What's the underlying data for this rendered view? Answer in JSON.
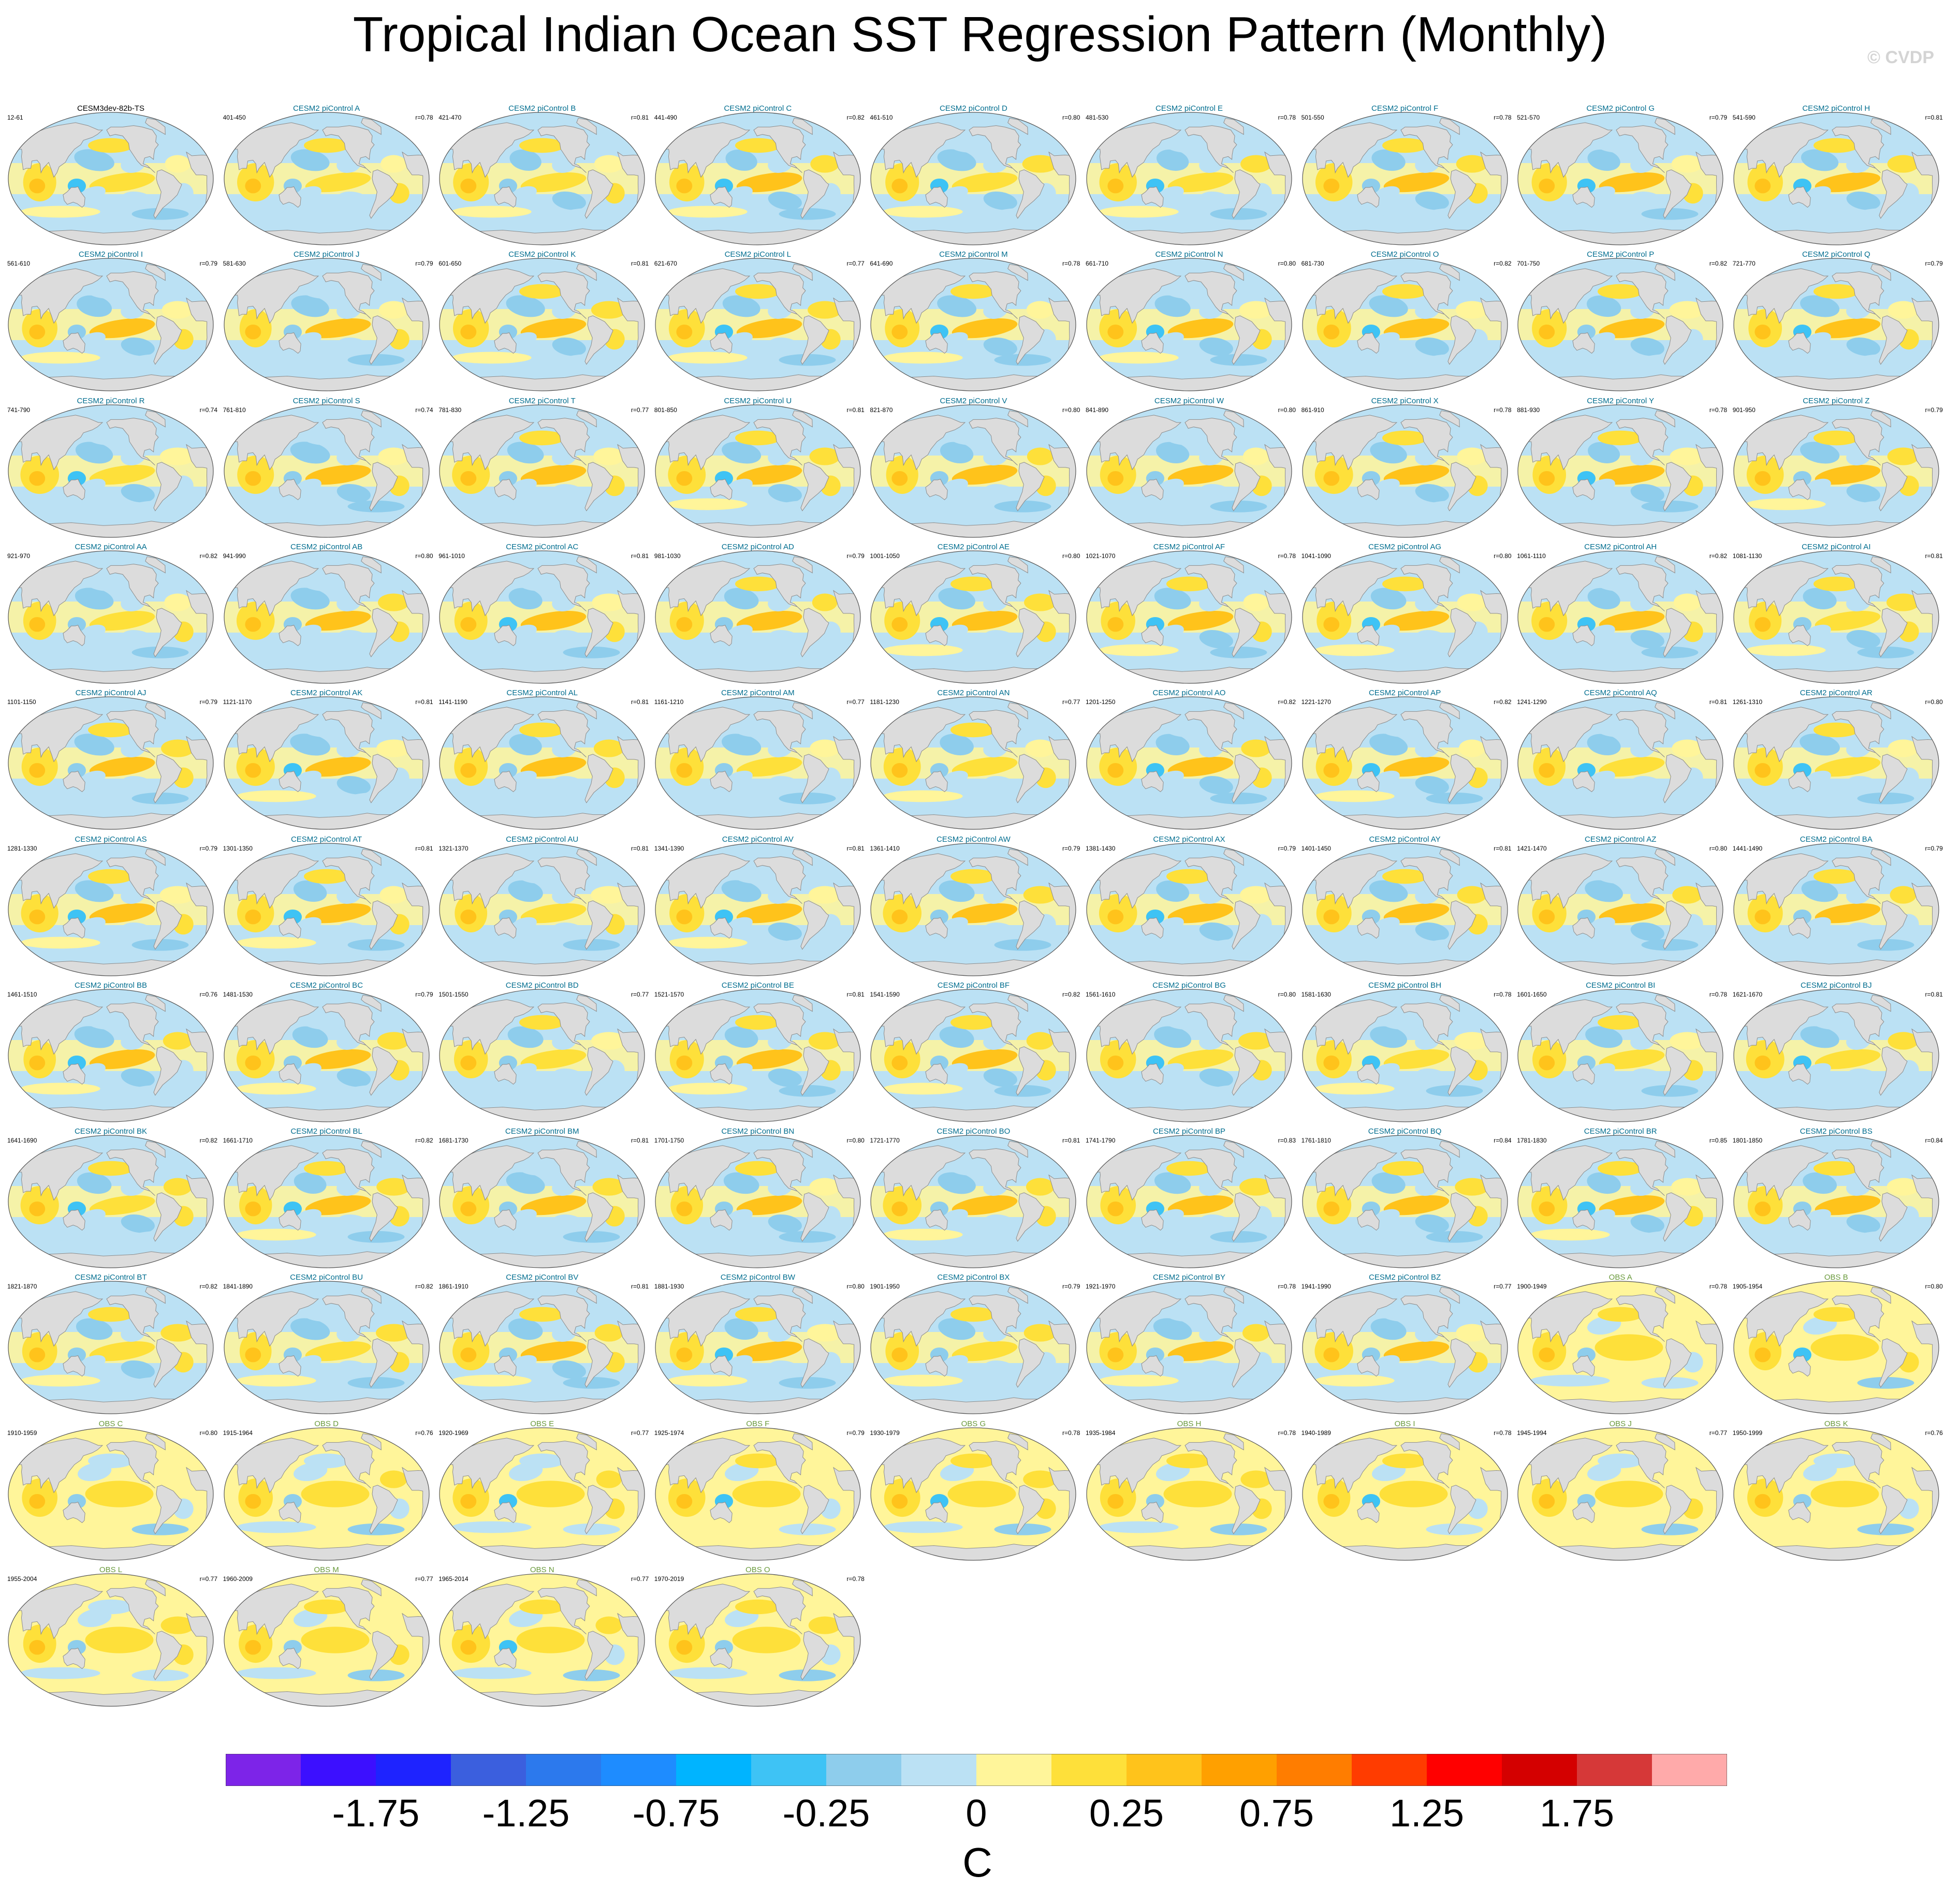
{
  "title": "Tropical Indian Ocean SST Regression Pattern (Monthly)",
  "watermark": "© CVDP",
  "panels": [
    {
      "title": "CESM3dev-82b-TS",
      "kind": "ref",
      "years": "12-61",
      "corr": ""
    },
    {
      "title": "CESM2 piControl A",
      "kind": "model",
      "years": "401-450",
      "corr": "r=0.78"
    },
    {
      "title": "CESM2 piControl B",
      "kind": "model",
      "years": "421-470",
      "corr": "r=0.81"
    },
    {
      "title": "CESM2 piControl C",
      "kind": "model",
      "years": "441-490",
      "corr": "r=0.82"
    },
    {
      "title": "CESM2 piControl D",
      "kind": "model",
      "years": "461-510",
      "corr": "r=0.80"
    },
    {
      "title": "CESM2 piControl E",
      "kind": "model",
      "years": "481-530",
      "corr": "r=0.78"
    },
    {
      "title": "CESM2 piControl F",
      "kind": "model",
      "years": "501-550",
      "corr": "r=0.78"
    },
    {
      "title": "CESM2 piControl G",
      "kind": "model",
      "years": "521-570",
      "corr": "r=0.79"
    },
    {
      "title": "CESM2 piControl H",
      "kind": "model",
      "years": "541-590",
      "corr": "r=0.81"
    },
    {
      "title": "CESM2 piControl I",
      "kind": "model",
      "years": "561-610",
      "corr": "r=0.79"
    },
    {
      "title": "CESM2 piControl J",
      "kind": "model",
      "years": "581-630",
      "corr": "r=0.79"
    },
    {
      "title": "CESM2 piControl K",
      "kind": "model",
      "years": "601-650",
      "corr": "r=0.81"
    },
    {
      "title": "CESM2 piControl L",
      "kind": "model",
      "years": "621-670",
      "corr": "r=0.77"
    },
    {
      "title": "CESM2 piControl M",
      "kind": "model",
      "years": "641-690",
      "corr": "r=0.78"
    },
    {
      "title": "CESM2 piControl N",
      "kind": "model",
      "years": "661-710",
      "corr": "r=0.80"
    },
    {
      "title": "CESM2 piControl O",
      "kind": "model",
      "years": "681-730",
      "corr": "r=0.82"
    },
    {
      "title": "CESM2 piControl P",
      "kind": "model",
      "years": "701-750",
      "corr": "r=0.82"
    },
    {
      "title": "CESM2 piControl Q",
      "kind": "model",
      "years": "721-770",
      "corr": "r=0.79"
    },
    {
      "title": "CESM2 piControl R",
      "kind": "model",
      "years": "741-790",
      "corr": "r=0.74"
    },
    {
      "title": "CESM2 piControl S",
      "kind": "model",
      "years": "761-810",
      "corr": "r=0.74"
    },
    {
      "title": "CESM2 piControl T",
      "kind": "model",
      "years": "781-830",
      "corr": "r=0.77"
    },
    {
      "title": "CESM2 piControl U",
      "kind": "model",
      "years": "801-850",
      "corr": "r=0.81"
    },
    {
      "title": "CESM2 piControl V",
      "kind": "model",
      "years": "821-870",
      "corr": "r=0.80"
    },
    {
      "title": "CESM2 piControl W",
      "kind": "model",
      "years": "841-890",
      "corr": "r=0.80"
    },
    {
      "title": "CESM2 piControl X",
      "kind": "model",
      "years": "861-910",
      "corr": "r=0.78"
    },
    {
      "title": "CESM2 piControl Y",
      "kind": "model",
      "years": "881-930",
      "corr": "r=0.78"
    },
    {
      "title": "CESM2 piControl Z",
      "kind": "model",
      "years": "901-950",
      "corr": "r=0.79"
    },
    {
      "title": "CESM2 piControl AA",
      "kind": "model",
      "years": "921-970",
      "corr": "r=0.82"
    },
    {
      "title": "CESM2 piControl AB",
      "kind": "model",
      "years": "941-990",
      "corr": "r=0.80"
    },
    {
      "title": "CESM2 piControl AC",
      "kind": "model",
      "years": "961-1010",
      "corr": "r=0.81"
    },
    {
      "title": "CESM2 piControl AD",
      "kind": "model",
      "years": "981-1030",
      "corr": "r=0.79"
    },
    {
      "title": "CESM2 piControl AE",
      "kind": "model",
      "years": "1001-1050",
      "corr": "r=0.80"
    },
    {
      "title": "CESM2 piControl AF",
      "kind": "model",
      "years": "1021-1070",
      "corr": "r=0.78"
    },
    {
      "title": "CESM2 piControl AG",
      "kind": "model",
      "years": "1041-1090",
      "corr": "r=0.80"
    },
    {
      "title": "CESM2 piControl AH",
      "kind": "model",
      "years": "1061-1110",
      "corr": "r=0.82"
    },
    {
      "title": "CESM2 piControl AI",
      "kind": "model",
      "years": "1081-1130",
      "corr": "r=0.81"
    },
    {
      "title": "CESM2 piControl AJ",
      "kind": "model",
      "years": "1101-1150",
      "corr": "r=0.79"
    },
    {
      "title": "CESM2 piControl AK",
      "kind": "model",
      "years": "1121-1170",
      "corr": "r=0.81"
    },
    {
      "title": "CESM2 piControl AL",
      "kind": "model",
      "years": "1141-1190",
      "corr": "r=0.81"
    },
    {
      "title": "CESM2 piControl AM",
      "kind": "model",
      "years": "1161-1210",
      "corr": "r=0.77"
    },
    {
      "title": "CESM2 piControl AN",
      "kind": "model",
      "years": "1181-1230",
      "corr": "r=0.77"
    },
    {
      "title": "CESM2 piControl AO",
      "kind": "model",
      "years": "1201-1250",
      "corr": "r=0.82"
    },
    {
      "title": "CESM2 piControl AP",
      "kind": "model",
      "years": "1221-1270",
      "corr": "r=0.82"
    },
    {
      "title": "CESM2 piControl AQ",
      "kind": "model",
      "years": "1241-1290",
      "corr": "r=0.81"
    },
    {
      "title": "CESM2 piControl AR",
      "kind": "model",
      "years": "1261-1310",
      "corr": "r=0.80"
    },
    {
      "title": "CESM2 piControl AS",
      "kind": "model",
      "years": "1281-1330",
      "corr": "r=0.79"
    },
    {
      "title": "CESM2 piControl AT",
      "kind": "model",
      "years": "1301-1350",
      "corr": "r=0.81"
    },
    {
      "title": "CESM2 piControl AU",
      "kind": "model",
      "years": "1321-1370",
      "corr": "r=0.81"
    },
    {
      "title": "CESM2 piControl AV",
      "kind": "model",
      "years": "1341-1390",
      "corr": "r=0.81"
    },
    {
      "title": "CESM2 piControl AW",
      "kind": "model",
      "years": "1361-1410",
      "corr": "r=0.79"
    },
    {
      "title": "CESM2 piControl AX",
      "kind": "model",
      "years": "1381-1430",
      "corr": "r=0.79"
    },
    {
      "title": "CESM2 piControl AY",
      "kind": "model",
      "years": "1401-1450",
      "corr": "r=0.81"
    },
    {
      "title": "CESM2 piControl AZ",
      "kind": "model",
      "years": "1421-1470",
      "corr": "r=0.80"
    },
    {
      "title": "CESM2 piControl BA",
      "kind": "model",
      "years": "1441-1490",
      "corr": "r=0.79"
    },
    {
      "title": "CESM2 piControl BB",
      "kind": "model",
      "years": "1461-1510",
      "corr": "r=0.76"
    },
    {
      "title": "CESM2 piControl BC",
      "kind": "model",
      "years": "1481-1530",
      "corr": "r=0.79"
    },
    {
      "title": "CESM2 piControl BD",
      "kind": "model",
      "years": "1501-1550",
      "corr": "r=0.77"
    },
    {
      "title": "CESM2 piControl BE",
      "kind": "model",
      "years": "1521-1570",
      "corr": "r=0.81"
    },
    {
      "title": "CESM2 piControl BF",
      "kind": "model",
      "years": "1541-1590",
      "corr": "r=0.82"
    },
    {
      "title": "CESM2 piControl BG",
      "kind": "model",
      "years": "1561-1610",
      "corr": "r=0.80"
    },
    {
      "title": "CESM2 piControl BH",
      "kind": "model",
      "years": "1581-1630",
      "corr": "r=0.78"
    },
    {
      "title": "CESM2 piControl BI",
      "kind": "model",
      "years": "1601-1650",
      "corr": "r=0.78"
    },
    {
      "title": "CESM2 piControl BJ",
      "kind": "model",
      "years": "1621-1670",
      "corr": "r=0.81"
    },
    {
      "title": "CESM2 piControl BK",
      "kind": "model",
      "years": "1641-1690",
      "corr": "r=0.82"
    },
    {
      "title": "CESM2 piControl BL",
      "kind": "model",
      "years": "1661-1710",
      "corr": "r=0.82"
    },
    {
      "title": "CESM2 piControl BM",
      "kind": "model",
      "years": "1681-1730",
      "corr": "r=0.81"
    },
    {
      "title": "CESM2 piControl BN",
      "kind": "model",
      "years": "1701-1750",
      "corr": "r=0.80"
    },
    {
      "title": "CESM2 piControl BO",
      "kind": "model",
      "years": "1721-1770",
      "corr": "r=0.81"
    },
    {
      "title": "CESM2 piControl BP",
      "kind": "model",
      "years": "1741-1790",
      "corr": "r=0.83"
    },
    {
      "title": "CESM2 piControl BQ",
      "kind": "model",
      "years": "1761-1810",
      "corr": "r=0.84"
    },
    {
      "title": "CESM2 piControl BR",
      "kind": "model",
      "years": "1781-1830",
      "corr": "r=0.85"
    },
    {
      "title": "CESM2 piControl BS",
      "kind": "model",
      "years": "1801-1850",
      "corr": "r=0.84"
    },
    {
      "title": "CESM2 piControl BT",
      "kind": "model",
      "years": "1821-1870",
      "corr": "r=0.82"
    },
    {
      "title": "CESM2 piControl BU",
      "kind": "model",
      "years": "1841-1890",
      "corr": "r=0.82"
    },
    {
      "title": "CESM2 piControl BV",
      "kind": "model",
      "years": "1861-1910",
      "corr": "r=0.81"
    },
    {
      "title": "CESM2 piControl BW",
      "kind": "model",
      "years": "1881-1930",
      "corr": "r=0.80"
    },
    {
      "title": "CESM2 piControl BX",
      "kind": "model",
      "years": "1901-1950",
      "corr": "r=0.79"
    },
    {
      "title": "CESM2 piControl BY",
      "kind": "model",
      "years": "1921-1970",
      "corr": "r=0.78"
    },
    {
      "title": "CESM2 piControl BZ",
      "kind": "model",
      "years": "1941-1990",
      "corr": "r=0.77"
    },
    {
      "title": "OBS A",
      "kind": "obs",
      "years": "1900-1949",
      "corr": "r=0.78"
    },
    {
      "title": "OBS B",
      "kind": "obs",
      "years": "1905-1954",
      "corr": "r=0.80"
    },
    {
      "title": "OBS C",
      "kind": "obs",
      "years": "1910-1959",
      "corr": "r=0.80"
    },
    {
      "title": "OBS D",
      "kind": "obs",
      "years": "1915-1964",
      "corr": "r=0.76"
    },
    {
      "title": "OBS E",
      "kind": "obs",
      "years": "1920-1969",
      "corr": "r=0.77"
    },
    {
      "title": "OBS F",
      "kind": "obs",
      "years": "1925-1974",
      "corr": "r=0.79"
    },
    {
      "title": "OBS G",
      "kind": "obs",
      "years": "1930-1979",
      "corr": "r=0.78"
    },
    {
      "title": "OBS H",
      "kind": "obs",
      "years": "1935-1984",
      "corr": "r=0.78"
    },
    {
      "title": "OBS I",
      "kind": "obs",
      "years": "1940-1989",
      "corr": "r=0.78"
    },
    {
      "title": "OBS J",
      "kind": "obs",
      "years": "1945-1994",
      "corr": "r=0.77"
    },
    {
      "title": "OBS K",
      "kind": "obs",
      "years": "1950-1999",
      "corr": "r=0.76"
    },
    {
      "title": "OBS L",
      "kind": "obs",
      "years": "1955-2004",
      "corr": "r=0.77"
    },
    {
      "title": "OBS M",
      "kind": "obs",
      "years": "1960-2009",
      "corr": "r=0.77"
    },
    {
      "title": "OBS N",
      "kind": "obs",
      "years": "1965-2014",
      "corr": "r=0.77"
    },
    {
      "title": "OBS O",
      "kind": "obs",
      "years": "1970-2019",
      "corr": "r=0.78"
    }
  ],
  "chart_data": {
    "type": "heatmap",
    "title": "Tropical Indian Ocean SST Regression Pattern (Monthly)",
    "colorbar": {
      "unit": "C",
      "levels": [
        -2,
        -1.75,
        -1.5,
        -1.25,
        -1,
        -0.75,
        -0.5,
        -0.25,
        -0.1,
        0,
        0.1,
        0.25,
        0.5,
        0.75,
        1,
        1.25,
        1.5,
        1.75,
        2
      ],
      "colors": [
        "#7d24e8",
        "#3c0fff",
        "#1e23ff",
        "#3b5fde",
        "#2c79ed",
        "#1e8cff",
        "#00b4ff",
        "#3ec3f5",
        "#8ecdec",
        "#bbe1f4",
        "#fff59a",
        "#fee03a",
        "#ffc31b",
        "#ffa000",
        "#ff7d00",
        "#ff3c00",
        "#ff0000",
        "#d40000",
        "#d63838",
        "#ffaaaa"
      ],
      "tick_labels": [
        "-1.75",
        "-1.25",
        "-0.75",
        "-0.25",
        "0",
        "0.25",
        "0.75",
        "1.25",
        "1.75"
      ]
    },
    "ocean_colors": {
      "warm": "#fee03a",
      "pale_warm": "#fff59a",
      "cool": "#bbe1f4",
      "blue": "#8ecdec",
      "deep_blue": "#3ec3f5",
      "orange": "#ffc31b",
      "land": "#dcdcdc"
    }
  }
}
